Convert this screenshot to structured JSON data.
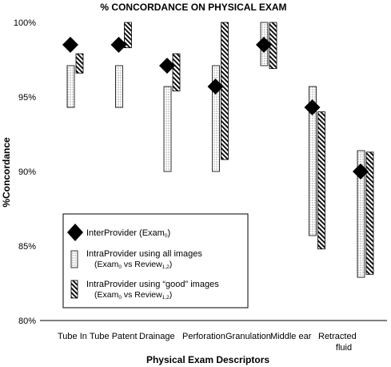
{
  "chart_data": {
    "type": "range-bar",
    "title": "% CONCORDANCE ON PHYSICAL EXAM",
    "xlabel": "Physical Exam Descriptors",
    "ylabel": "%Concordance",
    "ylim": [
      80,
      100
    ],
    "yticks": [
      "80%",
      "85%",
      "90%",
      "95%",
      "100%"
    ],
    "grid": false,
    "legend_position": "bottom-left inside plot",
    "categories": [
      "Tube In",
      "Tube Patent",
      "Drainage",
      "Perforation",
      "Granulation",
      "Middle ear fluid",
      "Retracted"
    ],
    "category_tick_labels": [
      "Tube In",
      "Tube Patent",
      "Drainage",
      "Perforation",
      "Granulation",
      "Middle ear",
      "Retracted fluid"
    ],
    "series": [
      {
        "name": "InterProvider (Exam0)",
        "legend": {
          "main": "InterProvider (Exam",
          "sub": "0",
          "tail": ")"
        },
        "marker": "diamond",
        "values": [
          98.5,
          98.5,
          97.1,
          95.7,
          98.5,
          94.3,
          90.0
        ]
      },
      {
        "name": "IntraProvider using all images (Exam0 vs Review1,2)",
        "legend": {
          "line1": "IntraProvider using all images",
          "line2_main": "(Exam",
          "line2_sub1": "0",
          "line2_mid": " vs Review",
          "line2_sub2": "1,2",
          "line2_tail": ")"
        },
        "marker": "dotted-bar",
        "ranges": [
          [
            94.3,
            97.1
          ],
          [
            94.3,
            97.1
          ],
          [
            90.0,
            95.7
          ],
          [
            90.0,
            97.1
          ],
          [
            97.1,
            100.0
          ],
          [
            85.7,
            95.7
          ],
          [
            82.9,
            91.4
          ]
        ]
      },
      {
        "name": "IntraProvider using “good” images (Exam0 vs Review1,2)",
        "legend": {
          "line1": "IntraProvider using “good” images",
          "line2_main": "(Exam",
          "line2_sub1": "0",
          "line2_mid": " vs Review",
          "line2_sub2": "1,2",
          "line2_tail": ")"
        },
        "marker": "hatched-bar",
        "ranges": [
          [
            96.6,
            97.9
          ],
          [
            98.3,
            100.0
          ],
          [
            95.4,
            97.9
          ],
          [
            90.8,
            100.0
          ],
          [
            96.9,
            100.0
          ],
          [
            84.8,
            94.0
          ],
          [
            83.1,
            91.3
          ]
        ]
      }
    ]
  }
}
